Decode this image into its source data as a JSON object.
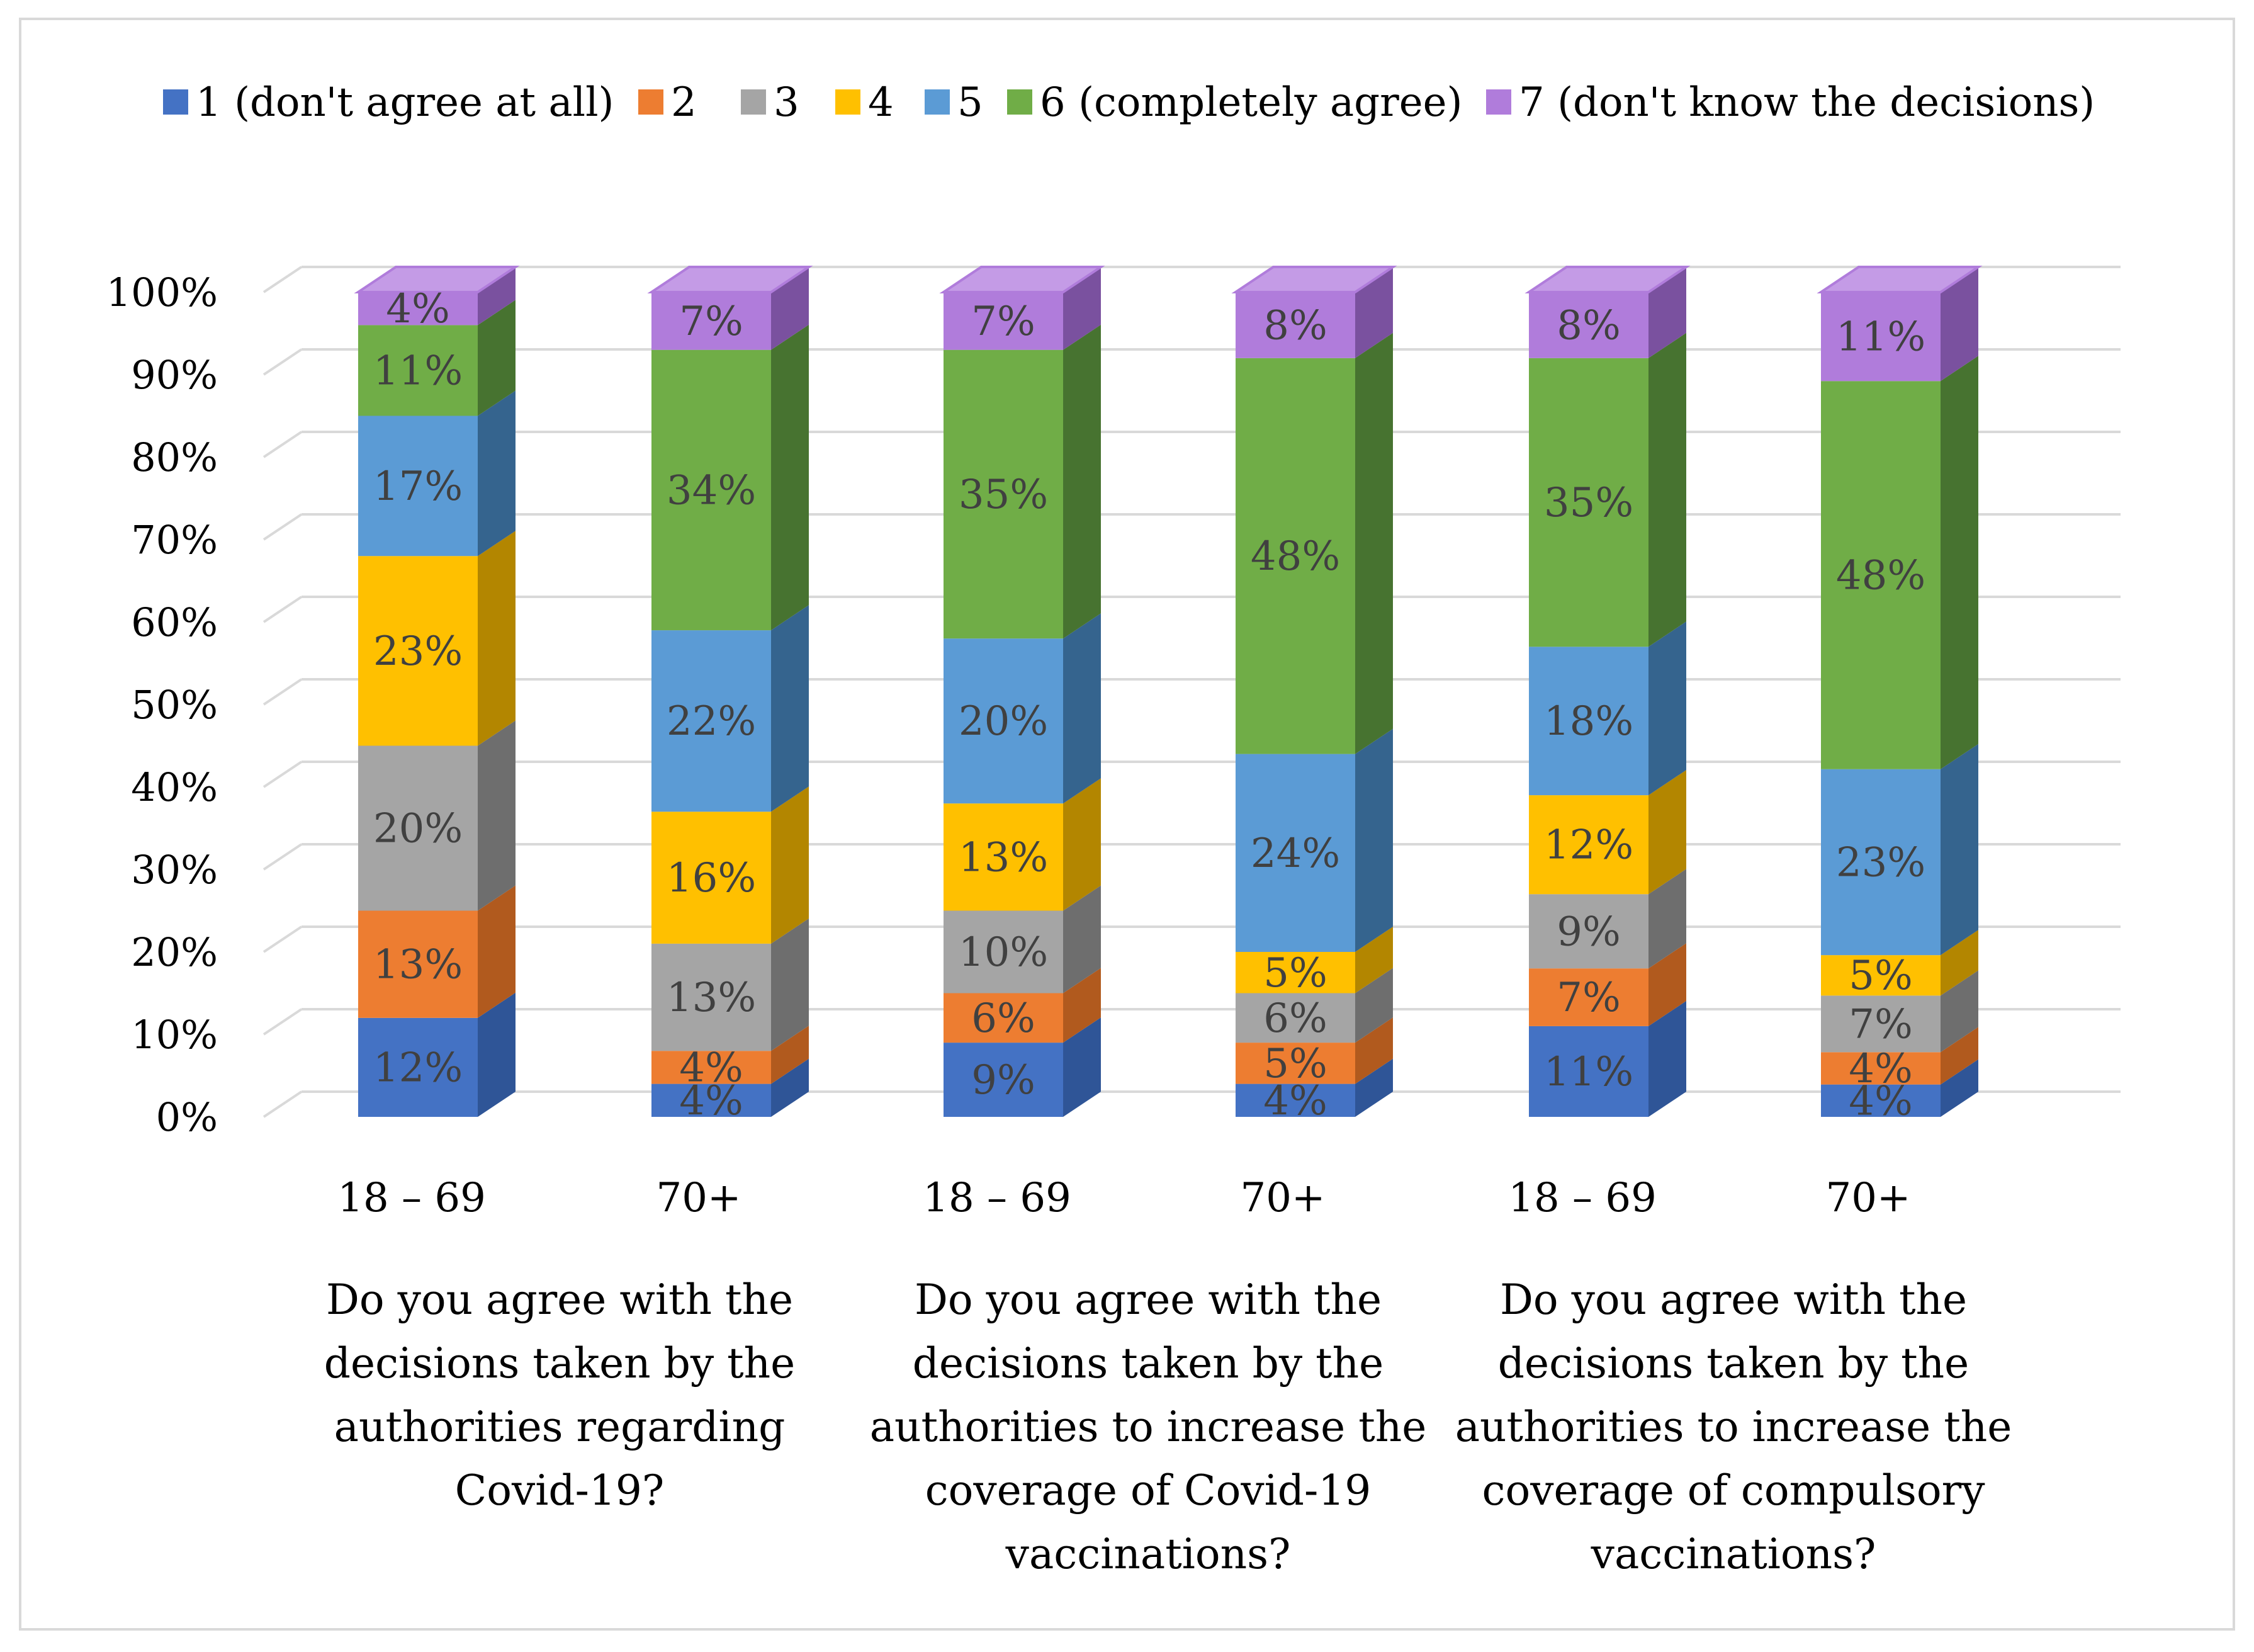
{
  "chart_data": {
    "type": "bar",
    "stacked": true,
    "three_d": true,
    "categories": [
      "18 – 69",
      "70+",
      "18 – 69",
      "70+",
      "18 – 69",
      "70+"
    ],
    "groups": [
      {
        "label_lines": [
          "Do you agree with the",
          "decisions taken by the",
          "authorities regarding",
          "Covid-19?"
        ]
      },
      {
        "label_lines": [
          "Do you agree with the",
          "decisions taken by the",
          "authorities to increase the",
          "coverage of Covid-19",
          "vaccinations?"
        ]
      },
      {
        "label_lines": [
          "Do you agree with the",
          "decisions taken by the",
          "authorities to increase the",
          "coverage of compulsory",
          "vaccinations?"
        ]
      }
    ],
    "series": [
      {
        "name": "1 (don't agree at all)",
        "color": "#4472C4",
        "side_color": "#2F5597",
        "top_color": "#5B8AD6",
        "values": [
          12,
          4,
          9,
          4,
          11,
          4
        ]
      },
      {
        "name": "2",
        "color": "#ED7D31",
        "side_color": "#B15A1E",
        "top_color": "#F29A5E",
        "values": [
          13,
          4,
          6,
          5,
          7,
          4
        ]
      },
      {
        "name": "3",
        "color": "#A5A5A5",
        "side_color": "#6E6E6E",
        "top_color": "#BDBDBD",
        "values": [
          20,
          13,
          10,
          6,
          9,
          7
        ]
      },
      {
        "name": "4",
        "color": "#FFC000",
        "side_color": "#B38600",
        "top_color": "#FFD24D",
        "values": [
          23,
          16,
          13,
          5,
          12,
          5
        ]
      },
      {
        "name": "5",
        "color": "#5B9BD5",
        "side_color": "#35648E",
        "top_color": "#82B4E2",
        "values": [
          17,
          22,
          20,
          24,
          18,
          23
        ]
      },
      {
        "name": "6 (completely agree)",
        "color": "#70AD47",
        "side_color": "#477330",
        "top_color": "#8EC46A",
        "values": [
          11,
          34,
          35,
          48,
          35,
          48
        ]
      },
      {
        "name": "7 (don't know the decisions)",
        "color": "#B07CDB",
        "side_color": "#7A519F",
        "top_color": "#C49BE6",
        "values": [
          4,
          7,
          7,
          8,
          8,
          11
        ]
      }
    ],
    "value_labels": [
      [
        "12%",
        "4%",
        "9%",
        "4%",
        "11%",
        "4%"
      ],
      [
        "13%",
        "4%",
        "6%",
        "5%",
        "7%",
        "4%"
      ],
      [
        "20%",
        "13%",
        "10%",
        "6%",
        "9%",
        "7%"
      ],
      [
        "23%",
        "16%",
        "13%",
        "5%",
        "12%",
        "5%"
      ],
      [
        "17%",
        "22%",
        "20%",
        "24%",
        "18%",
        "23%"
      ],
      [
        "11%",
        "34%",
        "35%",
        "48%",
        "35%",
        "48%"
      ],
      [
        "4%",
        "7%",
        "7%",
        "8%",
        "8%",
        "11%"
      ]
    ],
    "y_ticks": [
      "0%",
      "10%",
      "20%",
      "30%",
      "40%",
      "50%",
      "60%",
      "70%",
      "80%",
      "90%",
      "100%"
    ],
    "ylim": [
      0,
      100
    ],
    "grid": true,
    "legend_position": "top",
    "title": "",
    "xlabel": "",
    "ylabel": ""
  }
}
